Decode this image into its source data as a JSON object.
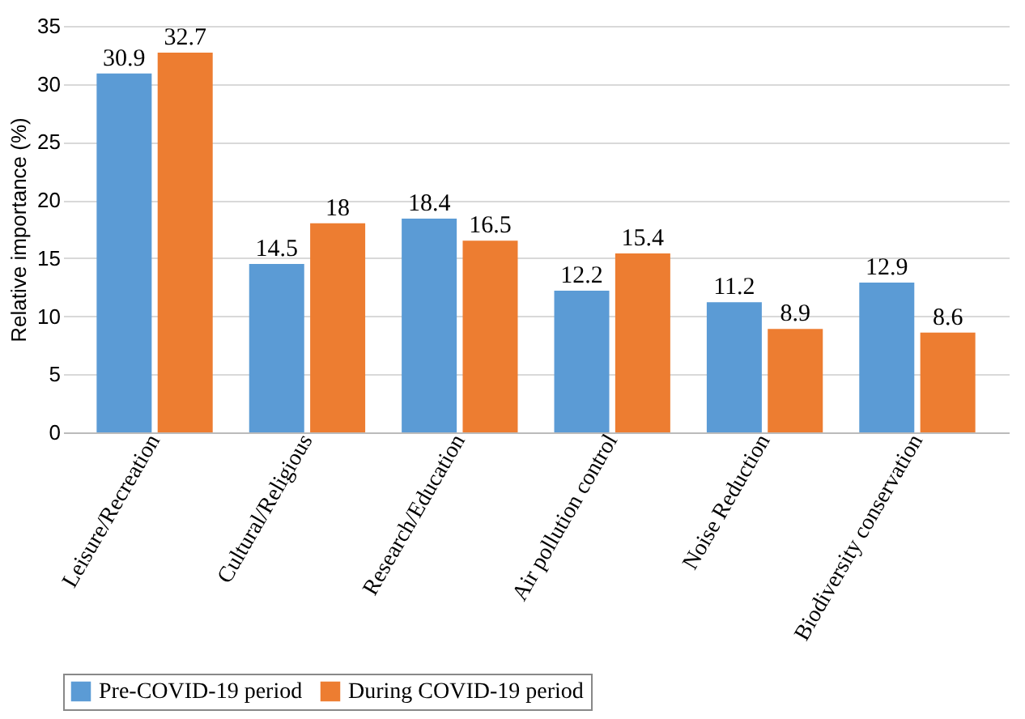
{
  "chart_data": {
    "type": "bar",
    "ylabel": "Relative importance (%)",
    "categories": [
      "Leisure/Recreation",
      "Cultural/Religious",
      "Research/Education",
      "Air pollution control",
      "Noise Reduction",
      "Biodiversity conservation"
    ],
    "series": [
      {
        "name": "Pre-COVID-19 period",
        "color": "#5b9bd5",
        "values": [
          30.9,
          14.5,
          18.4,
          12.2,
          11.2,
          12.9
        ]
      },
      {
        "name": "During COVID-19 period",
        "color": "#ed7d31",
        "values": [
          32.7,
          18,
          16.5,
          15.4,
          8.9,
          8.6
        ]
      }
    ],
    "ylim": [
      0,
      35
    ],
    "yticks": [
      0,
      5,
      10,
      15,
      20,
      25,
      30,
      35
    ],
    "grid": "y",
    "legend": "bottom",
    "data_labels": true
  }
}
